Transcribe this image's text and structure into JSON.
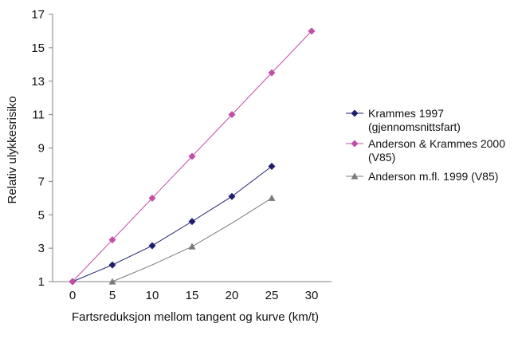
{
  "chart_data": {
    "type": "line",
    "title": "",
    "xlabel": "Fartsreduksjon mellom tangent og kurve (km/t)",
    "ylabel": "Relativ ulykkesrisiko",
    "xlim": [
      -2.5,
      32.5
    ],
    "ylim": [
      1,
      17
    ],
    "xticks": [
      0,
      5,
      10,
      15,
      20,
      25,
      30
    ],
    "yticks": [
      1,
      3,
      5,
      7,
      9,
      11,
      13,
      15,
      17
    ],
    "grid": false,
    "legend_position": "right",
    "series": [
      {
        "name": "Krammes 1997 (gjennomsnittsfart)",
        "legend_lines": [
          "Krammes 1997",
          "(gjennomsnittsfart)"
        ],
        "color": "#1f1f6e",
        "marker": "diamond",
        "x": [
          0,
          5,
          10,
          15,
          20,
          25
        ],
        "y": [
          1.0,
          2.0,
          3.15,
          4.6,
          6.1,
          7.9
        ],
        "marker_x": [
          0,
          5,
          10,
          15,
          20,
          25
        ]
      },
      {
        "name": "Anderson & Krammes 2000 (V85)",
        "legend_lines": [
          "Anderson & Krammes 2000",
          "(V85)"
        ],
        "color": "#c24fa8",
        "marker": "diamond",
        "x": [
          0,
          5,
          10,
          15,
          20,
          25,
          30
        ],
        "y": [
          1.0,
          3.5,
          6.0,
          8.5,
          11.0,
          13.5,
          16.0
        ],
        "marker_x": [
          0,
          5,
          10,
          15,
          20,
          25,
          30
        ]
      },
      {
        "name": "Anderson m.fl. 1999 (V85)",
        "legend_lines": [
          "Anderson m.fl. 1999 (V85)"
        ],
        "color": "#7a7a7a",
        "marker": "triangle",
        "x": [
          5,
          10,
          15,
          20,
          25
        ],
        "y": [
          1.0,
          2.0,
          3.1,
          4.5,
          6.0
        ],
        "marker_x": [
          5,
          15,
          25
        ]
      }
    ]
  }
}
